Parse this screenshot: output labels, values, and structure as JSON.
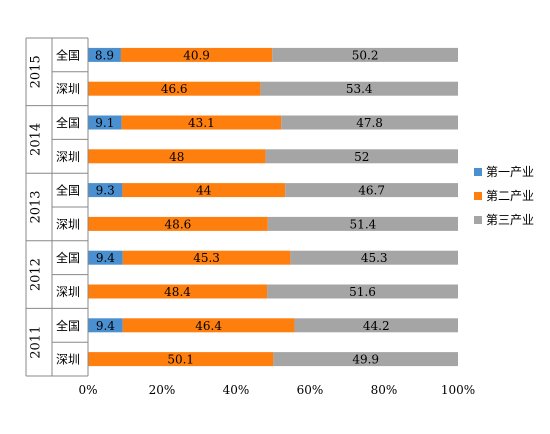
{
  "chart_data": {
    "type": "bar",
    "orientation": "horizontal",
    "stacked": true,
    "percent_stacked": true,
    "groups": [
      {
        "label": "2015",
        "rows": [
          {
            "label": "全国",
            "values": [
              8.9,
              40.9,
              50.2
            ]
          },
          {
            "label": "深圳",
            "values": [
              0,
              46.6,
              53.4
            ]
          }
        ]
      },
      {
        "label": "2014",
        "rows": [
          {
            "label": "全国",
            "values": [
              9.1,
              43.1,
              47.8
            ]
          },
          {
            "label": "深圳",
            "values": [
              0,
              48,
              52
            ]
          }
        ]
      },
      {
        "label": "2013",
        "rows": [
          {
            "label": "全国",
            "values": [
              9.3,
              44,
              46.7
            ]
          },
          {
            "label": "深圳",
            "values": [
              0,
              48.6,
              51.4
            ]
          }
        ]
      },
      {
        "label": "2012",
        "rows": [
          {
            "label": "全国",
            "values": [
              9.4,
              45.3,
              45.3
            ]
          },
          {
            "label": "深圳",
            "values": [
              0,
              48.4,
              51.6
            ]
          }
        ]
      },
      {
        "label": "2011",
        "rows": [
          {
            "label": "全国",
            "values": [
              9.4,
              46.4,
              44.2
            ]
          },
          {
            "label": "深圳",
            "values": [
              0,
              50.1,
              49.9
            ]
          }
        ]
      }
    ],
    "series": [
      {
        "name": "第一产业",
        "color": "#4a90d0"
      },
      {
        "name": "第二产业",
        "color": "#ff7f0e"
      },
      {
        "name": "第三产业",
        "color": "#a5a5a5"
      }
    ],
    "x_ticks": [
      "0%",
      "20%",
      "40%",
      "60%",
      "80%",
      "100%"
    ],
    "xlim": [
      0,
      100
    ],
    "grid": false,
    "legend_position": "right"
  }
}
